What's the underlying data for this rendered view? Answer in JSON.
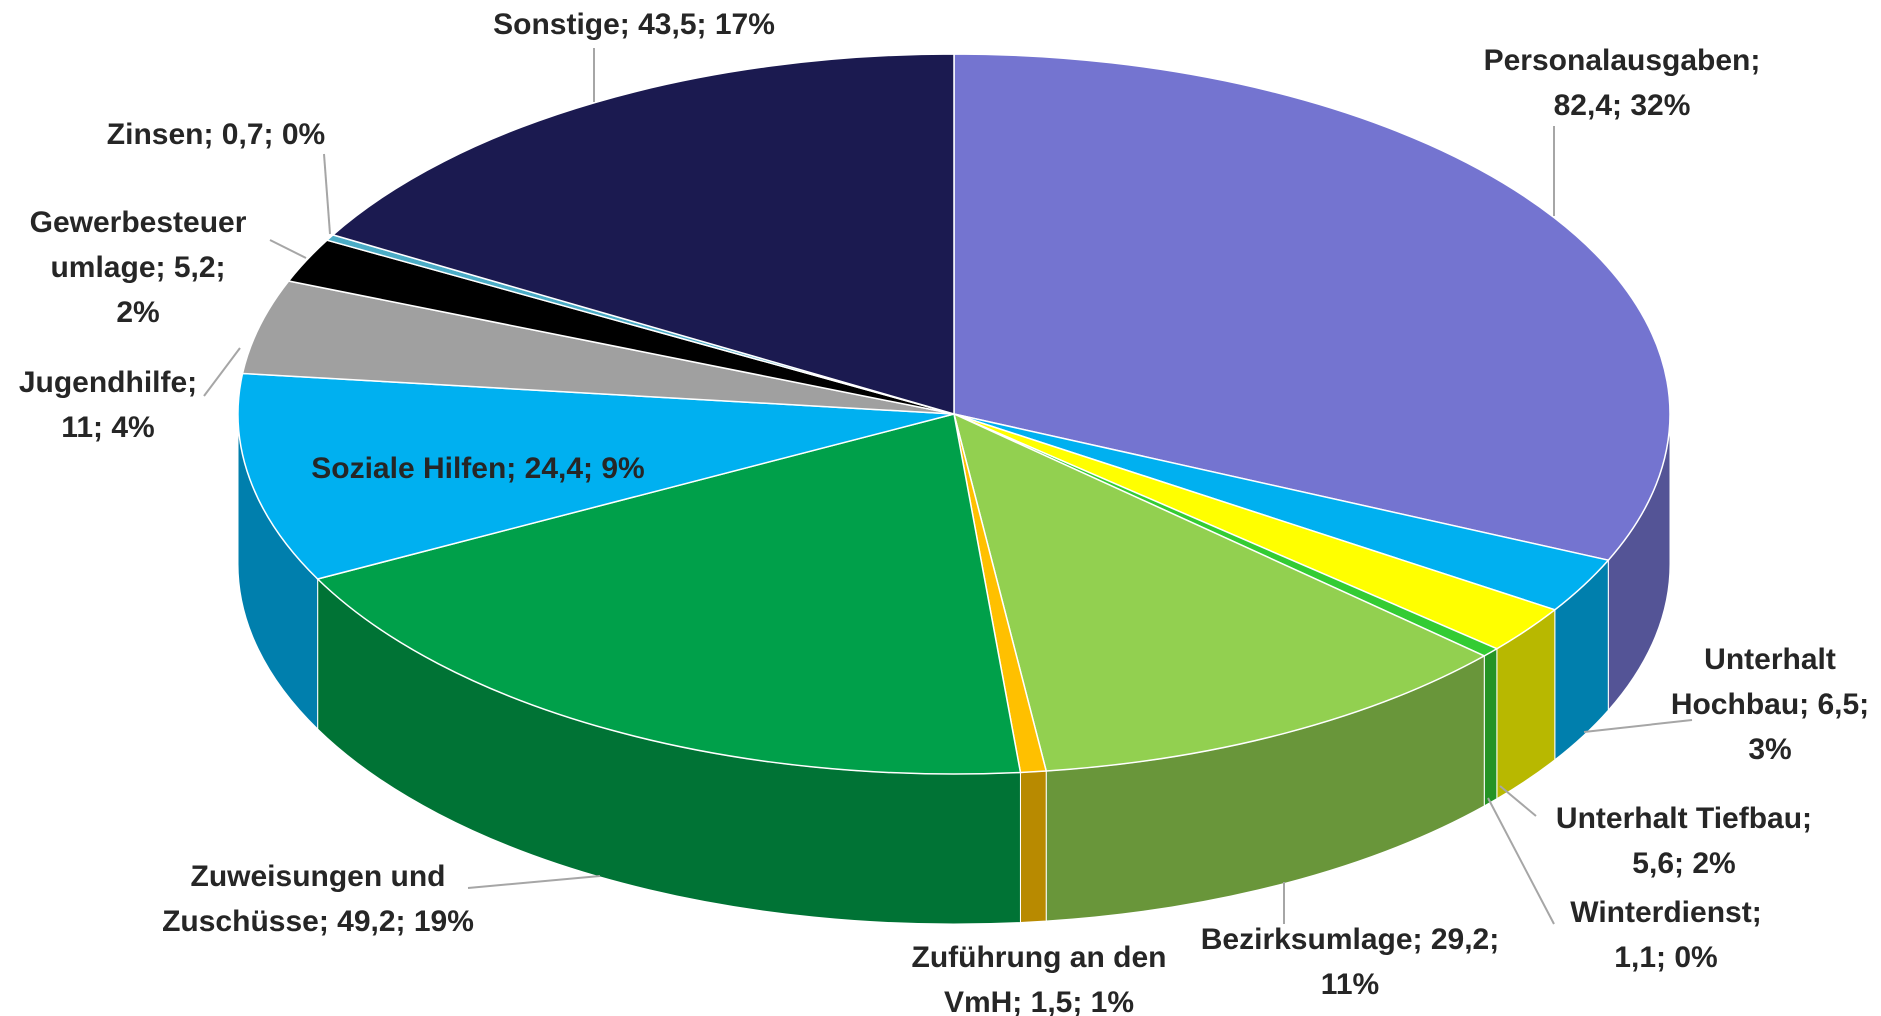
{
  "chart_data": {
    "type": "pie3d",
    "labels": [
      [
        "Personalausgaben;",
        "82,4; 32%"
      ],
      [
        "Unterhalt",
        "Hochbau; 6,5;",
        "3%"
      ],
      [
        "Unterhalt Tiefbau;",
        "5,6; 2%"
      ],
      [
        "Winterdienst;",
        "1,1; 0%"
      ],
      [
        "Bezirksumlage; 29,2;",
        "11%"
      ],
      [
        "Zuführung an den",
        "VmH; 1,5; 1%"
      ],
      [
        "Zuweisungen und",
        "Zuschüsse; 49,2; 19%"
      ],
      [
        "Soziale Hilfen; 24,4; 9%"
      ],
      [
        "Jugendhilfe;",
        "11; 4%"
      ],
      [
        "Gewerbesteuer",
        "umlage; 5,2;",
        "2%"
      ],
      [
        "Zinsen; 0,7; 0%"
      ],
      [
        "Sonstige; 43,5; 17%"
      ]
    ],
    "values": [
      82.4,
      6.5,
      5.6,
      1.1,
      29.2,
      1.5,
      49.2,
      24.4,
      11,
      5.2,
      0.7,
      43.5
    ],
    "colors": [
      "#7474d0",
      "#00b0f0",
      "#ffff00",
      "#33cc33",
      "#92d050",
      "#ffc000",
      "#00a04a",
      "#00b0f0",
      "#a0a0a0",
      "#000000",
      "#4bacc6",
      "#1b1a50"
    ]
  }
}
